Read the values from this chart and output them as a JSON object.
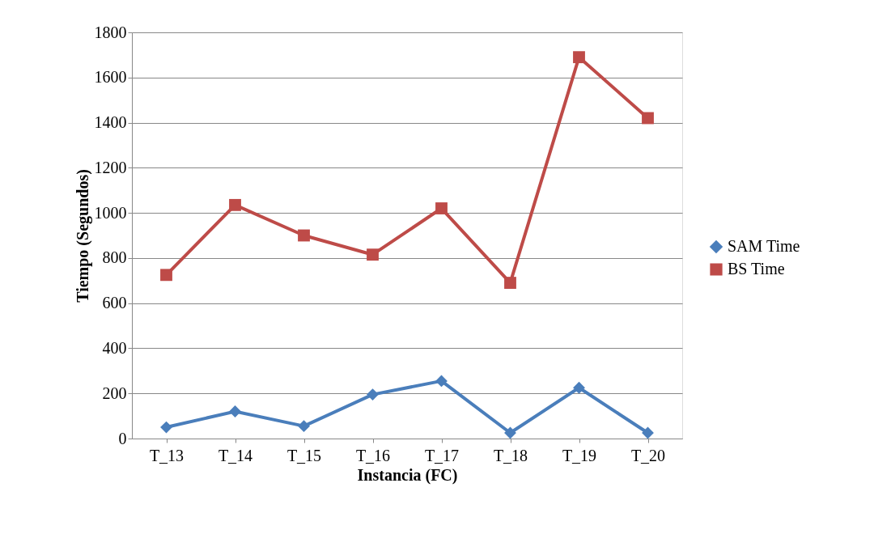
{
  "chart_data": {
    "type": "line",
    "xlabel": "Instancia (FC)",
    "ylabel": "Tiempo (Segundos)",
    "categories": [
      "T_13",
      "T_14",
      "T_15",
      "T_16",
      "T_17",
      "T_18",
      "T_19",
      "T_20"
    ],
    "series": [
      {
        "name": "SAM Time",
        "color": "#4a7ebb",
        "marker": "diamond",
        "values": [
          50,
          120,
          55,
          195,
          255,
          25,
          225,
          25
        ]
      },
      {
        "name": "BS Time",
        "color": "#be4b48",
        "marker": "square",
        "values": [
          725,
          1035,
          900,
          815,
          1020,
          690,
          1690,
          1420
        ]
      }
    ],
    "ylim": [
      0,
      1800
    ],
    "yticks": [
      0,
      200,
      400,
      600,
      800,
      1000,
      1200,
      1400,
      1600,
      1800
    ],
    "grid": "y",
    "legend": "right",
    "line_style": "solid"
  }
}
